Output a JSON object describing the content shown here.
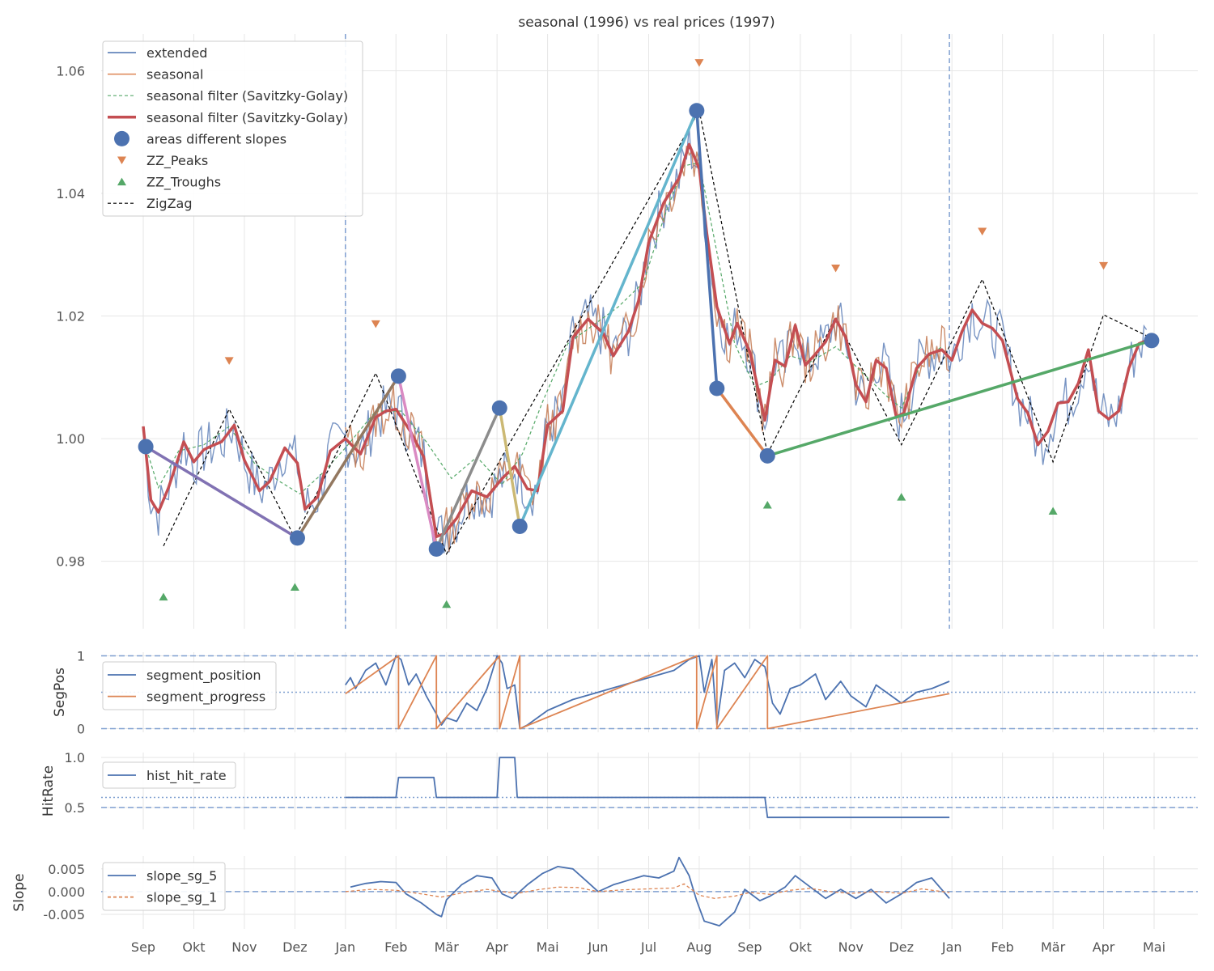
{
  "chart_data": [
    {
      "type": "line",
      "panel": "main",
      "title": "seasonal (1996) vs real prices (1997)",
      "xlabel": "",
      "ylabel": "",
      "x_ticks": [
        "Sep",
        "Okt",
        "Nov",
        "Dez",
        "Jan",
        "Feb",
        "Mär",
        "Apr",
        "Mai",
        "Jun",
        "Jul",
        "Aug",
        "Sep",
        "Okt",
        "Nov",
        "Dez",
        "Jan",
        "Feb",
        "Mär",
        "Apr",
        "Mai"
      ],
      "y_ticks": [
        "1.06",
        "1.04",
        "1.02",
        "1.00",
        "0.98"
      ],
      "ylim": [
        0.969,
        1.066
      ],
      "xlim_months": [
        -0.9,
        20.9
      ],
      "vertical_markers": [
        4.0,
        15.95
      ],
      "legend_location": "upper-left",
      "legend": [
        {
          "label": "extended",
          "color": "#4c72b0",
          "style": "thin-line"
        },
        {
          "label": "seasonal",
          "color": "#dd8452",
          "style": "thin-line"
        },
        {
          "label": "seasonal filter (Savitzky-Golay)",
          "color": "#55a868",
          "style": "dashed-line"
        },
        {
          "label": "seasonal filter (Savitzky-Golay)",
          "color": "#c44e52",
          "style": "thick-line"
        },
        {
          "label": "areas different slopes",
          "color": "#4c72b0",
          "style": "marker-circle"
        },
        {
          "label": "ZZ_Peaks",
          "color": "#dd8452",
          "style": "marker-down"
        },
        {
          "label": "ZZ_Troughs",
          "color": "#55a868",
          "style": "marker-up"
        },
        {
          "label": "ZigZag",
          "color": "#000000",
          "style": "black-dashed"
        }
      ],
      "zigzag": {
        "x": [
          0.4,
          1.7,
          3.0,
          4.6,
          6.0,
          11.0,
          12.35,
          13.7,
          15.0,
          16.6,
          18.0,
          19.0,
          20.0
        ],
        "y": [
          0.9825,
          1.0048,
          0.9838,
          1.0107,
          0.9812,
          1.0535,
          0.9975,
          1.0198,
          0.999,
          1.026,
          0.9962,
          1.0202,
          1.0162
        ]
      },
      "smooth_filter": {
        "x": [
          0.0,
          0.15,
          0.3,
          0.5,
          0.8,
          1.0,
          1.2,
          1.35,
          1.55,
          1.8,
          2.0,
          2.3,
          2.5,
          2.8,
          3.05,
          3.2,
          3.45,
          3.7,
          4.0,
          4.3,
          4.6,
          4.8,
          5.0,
          5.3,
          5.55,
          5.8,
          5.95,
          6.2,
          6.5,
          6.8,
          7.1,
          7.35,
          7.6,
          7.8,
          8.0,
          8.3,
          8.5,
          8.8,
          9.1,
          9.3,
          9.6,
          9.8,
          10.0,
          10.3,
          10.6,
          10.8,
          11.0,
          11.15,
          11.35,
          11.6,
          11.75,
          12.0,
          12.3,
          12.5,
          12.7,
          12.9,
          13.1,
          13.3,
          13.5,
          13.7,
          13.9,
          14.1,
          14.3,
          14.5,
          14.7,
          14.9,
          15.05,
          15.3,
          15.55,
          15.8,
          16.0,
          16.2,
          16.4,
          16.6,
          16.8,
          17.0,
          17.3,
          17.5,
          17.7,
          17.9,
          18.1,
          18.3,
          18.5,
          18.7,
          18.9,
          19.1,
          19.3,
          19.5,
          19.7,
          19.9
        ],
        "y": [
          1.002,
          0.99,
          0.988,
          0.992,
          0.9995,
          0.9962,
          0.9982,
          0.9988,
          0.9995,
          1.0022,
          0.9965,
          0.9915,
          0.993,
          0.9985,
          0.996,
          0.9885,
          0.9905,
          0.998,
          1.0,
          0.9975,
          1.0035,
          1.0045,
          1.0048,
          1.001,
          0.997,
          0.984,
          0.9845,
          0.987,
          0.9915,
          0.9905,
          0.9935,
          0.9955,
          0.9918,
          0.9915,
          1.0022,
          1.0045,
          1.0165,
          1.0195,
          1.0172,
          1.0135,
          1.0175,
          1.0225,
          1.032,
          1.0385,
          1.0425,
          1.048,
          1.044,
          1.0335,
          1.0215,
          1.0155,
          1.0188,
          1.0142,
          1.003,
          1.0128,
          1.0118,
          1.0185,
          1.012,
          1.0138,
          1.0158,
          1.0195,
          1.0165,
          1.0088,
          1.006,
          1.0128,
          1.0115,
          1.0035,
          1.0042,
          1.0115,
          1.0138,
          1.0145,
          1.0128,
          1.0175,
          1.021,
          1.0188,
          1.018,
          1.016,
          1.0065,
          1.0042,
          0.999,
          1.0012,
          1.0058,
          1.006,
          1.009,
          1.0145,
          1.0045,
          1.0032,
          1.0045,
          1.0115,
          1.0155,
          1.0162
        ]
      },
      "seasonal_filter": {
        "x": [
          0.0,
          0.3,
          0.7,
          1.2,
          1.7,
          2.2,
          2.7,
          3.1,
          3.5,
          4.0,
          4.6,
          5.1,
          5.6,
          6.1,
          6.6,
          7.1,
          7.5,
          7.9,
          8.4,
          8.9,
          9.4,
          9.9,
          10.3,
          10.7,
          11.0,
          11.3,
          11.7,
          12.1,
          12.4,
          12.8,
          13.2,
          13.7,
          14.2,
          14.7,
          15.0,
          15.4,
          15.8
        ],
        "y": [
          1.0,
          0.992,
          0.998,
          0.999,
          1.002,
          0.996,
          0.993,
          0.991,
          0.994,
          0.9985,
          1.0045,
          1.0045,
          0.9995,
          0.9935,
          0.997,
          0.9925,
          0.9975,
          1.006,
          1.0155,
          1.0185,
          1.0215,
          1.0255,
          1.036,
          1.0445,
          1.045,
          1.0325,
          1.0155,
          1.0085,
          1.0095,
          1.0135,
          1.0125,
          1.015,
          1.011,
          1.007,
          1.005,
          1.0125,
          1.015
        ]
      },
      "slope_areas": {
        "points": [
          {
            "x": 0.05,
            "y": 0.9987
          },
          {
            "x": 3.05,
            "y": 0.9838
          },
          {
            "x": 5.05,
            "y": 1.0102
          },
          {
            "x": 5.8,
            "y": 0.982
          },
          {
            "x": 7.05,
            "y": 1.005
          },
          {
            "x": 7.45,
            "y": 0.9857
          },
          {
            "x": 10.95,
            "y": 1.0535
          },
          {
            "x": 11.35,
            "y": 1.0082
          },
          {
            "x": 12.35,
            "y": 0.9972
          },
          {
            "x": 19.95,
            "y": 1.016
          }
        ],
        "segments": [
          {
            "from": [
              0.05,
              0.9987
            ],
            "to": [
              3.05,
              0.9838
            ],
            "color": "#8172b3"
          },
          {
            "from": [
              3.05,
              0.9838
            ],
            "to": [
              5.05,
              1.0102
            ],
            "color": "#937860"
          },
          {
            "from": [
              5.05,
              1.0102
            ],
            "to": [
              5.8,
              0.982
            ],
            "color": "#da8bc3"
          },
          {
            "from": [
              5.8,
              0.982
            ],
            "to": [
              7.05,
              1.005
            ],
            "color": "#8c8c8c"
          },
          {
            "from": [
              7.05,
              1.005
            ],
            "to": [
              7.45,
              0.9857
            ],
            "color": "#ccb974"
          },
          {
            "from": [
              7.45,
              0.9857
            ],
            "to": [
              10.95,
              1.0535
            ],
            "color": "#64b5cd"
          },
          {
            "from": [
              10.95,
              1.0535
            ],
            "to": [
              11.35,
              1.0082
            ],
            "color": "#4c72b0"
          },
          {
            "from": [
              11.35,
              1.0082
            ],
            "to": [
              12.35,
              0.9972
            ],
            "color": "#dd8452"
          },
          {
            "from": [
              12.35,
              0.9972
            ],
            "to": [
              19.95,
              1.016
            ],
            "color": "#55a868"
          }
        ]
      },
      "zz_peaks": {
        "x": [
          1.7,
          4.6,
          11.0,
          13.7,
          16.6,
          19.0
        ],
        "y": [
          1.0127,
          1.0187,
          1.0613,
          1.0278,
          1.0338,
          1.0282
        ]
      },
      "zz_troughs": {
        "x": [
          0.4,
          3.0,
          6.0,
          12.35,
          15.0,
          18.0
        ],
        "y": [
          0.9742,
          0.9758,
          0.973,
          0.9892,
          0.9905,
          0.9882
        ]
      }
    },
    {
      "type": "line",
      "panel": "segment",
      "ylabel": "SegPos",
      "y_ticks": [
        "1",
        "0"
      ],
      "ylim": [
        -0.05,
        1.05
      ],
      "hlines": [
        {
          "y": 1,
          "style": "dashed"
        },
        {
          "y": 0.5,
          "style": "dotted"
        },
        {
          "y": 0,
          "style": "dashed"
        }
      ],
      "legend_location": "upper-left",
      "series": [
        {
          "name": "segment_position",
          "color": "#4c72b0",
          "x": [
            4.0,
            4.1,
            4.2,
            4.4,
            4.6,
            4.8,
            5.0,
            5.1,
            5.25,
            5.4,
            5.6,
            5.8,
            5.9,
            6.0,
            6.2,
            6.4,
            6.6,
            6.8,
            7.0,
            7.1,
            7.2,
            7.35,
            7.45,
            7.6,
            7.8,
            8.0,
            8.5,
            9.0,
            9.5,
            10.0,
            10.5,
            10.8,
            11.0,
            11.1,
            11.25,
            11.35,
            11.5,
            11.7,
            11.9,
            12.1,
            12.3,
            12.45,
            12.6,
            12.8,
            13.0,
            13.3,
            13.5,
            13.8,
            14.0,
            14.3,
            14.5,
            14.8,
            15.0,
            15.3,
            15.6,
            15.95
          ],
          "y": [
            0.6,
            0.7,
            0.55,
            0.8,
            0.9,
            0.6,
            1.0,
            0.95,
            0.6,
            0.75,
            0.45,
            0.2,
            0.05,
            0.15,
            0.1,
            0.35,
            0.25,
            0.55,
            1.0,
            0.9,
            0.55,
            0.6,
            0.0,
            0.05,
            0.15,
            0.25,
            0.4,
            0.5,
            0.6,
            0.7,
            0.8,
            0.95,
            1.0,
            0.5,
            0.95,
            0.05,
            0.8,
            0.9,
            0.7,
            0.95,
            0.85,
            0.35,
            0.2,
            0.55,
            0.6,
            0.75,
            0.4,
            0.65,
            0.45,
            0.3,
            0.6,
            0.45,
            0.35,
            0.5,
            0.55,
            0.65
          ]
        },
        {
          "name": "segment_progress",
          "color": "#dd8452",
          "x": [
            4.0,
            5.05,
            5.05,
            5.8,
            5.8,
            7.05,
            7.05,
            7.45,
            7.45,
            10.95,
            10.95,
            11.35,
            11.35,
            12.35,
            12.35,
            15.95
          ],
          "y": [
            0.48,
            1.0,
            0.0,
            1.0,
            0.0,
            1.0,
            0.0,
            1.0,
            0.0,
            1.0,
            0.0,
            1.0,
            0.0,
            1.0,
            0.0,
            0.48
          ]
        }
      ]
    },
    {
      "type": "line",
      "panel": "hitrate",
      "ylabel": "HitRate",
      "y_ticks": [
        "1.0",
        "0.5"
      ],
      "ylim": [
        0.28,
        1.05
      ],
      "hlines": [
        {
          "y": 0.6,
          "style": "dotted"
        },
        {
          "y": 0.5,
          "style": "dashed"
        }
      ],
      "legend_location": "upper-left",
      "series": [
        {
          "name": "hist_hit_rate",
          "color": "#4c72b0",
          "x": [
            4.0,
            5.0,
            5.05,
            5.75,
            5.8,
            7.0,
            7.05,
            7.35,
            7.4,
            12.3,
            12.35,
            15.95
          ],
          "y": [
            0.6,
            0.6,
            0.8,
            0.8,
            0.6,
            0.6,
            1.0,
            1.0,
            0.6,
            0.6,
            0.4,
            0.4
          ]
        }
      ]
    },
    {
      "type": "line",
      "panel": "slope",
      "ylabel": "Slope",
      "y_ticks": [
        "0.005",
        "0.000",
        "-0.005"
      ],
      "ylim": [
        -0.0082,
        0.0078
      ],
      "hlines": [
        {
          "y": 0,
          "style": "dashed"
        }
      ],
      "legend_location": "upper-left",
      "series": [
        {
          "name": "slope_sg_5",
          "color": "#4c72b0",
          "style": "solid",
          "x": [
            4.1,
            4.4,
            4.7,
            5.0,
            5.2,
            5.5,
            5.8,
            5.9,
            6.0,
            6.3,
            6.6,
            6.9,
            7.1,
            7.3,
            7.6,
            7.9,
            8.2,
            8.5,
            8.8,
            9.0,
            9.3,
            9.6,
            9.9,
            10.2,
            10.5,
            10.6,
            10.8,
            10.95,
            11.1,
            11.4,
            11.7,
            11.9,
            12.2,
            12.4,
            12.7,
            12.9,
            13.2,
            13.5,
            13.8,
            14.1,
            14.4,
            14.7,
            15.0,
            15.3,
            15.6,
            15.95
          ],
          "y": [
            0.001,
            0.0018,
            0.0022,
            0.002,
            -0.0005,
            -0.0025,
            -0.005,
            -0.0055,
            -0.0018,
            0.0015,
            0.0035,
            0.003,
            -0.0005,
            -0.0015,
            0.0015,
            0.004,
            0.0055,
            0.005,
            0.002,
            0.0,
            0.0015,
            0.0025,
            0.0035,
            0.003,
            0.0045,
            0.0075,
            0.0035,
            -0.002,
            -0.0065,
            -0.0075,
            -0.0045,
            0.0005,
            -0.002,
            -0.001,
            0.001,
            0.0035,
            0.001,
            -0.0015,
            0.0005,
            -0.0015,
            0.0005,
            -0.0025,
            -0.0005,
            0.002,
            0.003,
            -0.0015
          ]
        },
        {
          "name": "slope_sg_1",
          "color": "#dd8452",
          "style": "dashed",
          "x": [
            4.0,
            4.5,
            5.0,
            5.5,
            5.9,
            6.3,
            6.8,
            7.1,
            7.4,
            7.8,
            8.2,
            8.6,
            9.0,
            9.5,
            10.0,
            10.5,
            10.7,
            11.0,
            11.3,
            11.7,
            12.0,
            12.4,
            12.8,
            13.2,
            13.6,
            14.0,
            14.5,
            15.0,
            15.4,
            15.95
          ],
          "y": [
            0.0,
            0.0005,
            0.0003,
            -0.0005,
            -0.0012,
            -0.0003,
            0.0005,
            0.0,
            -0.0004,
            0.0004,
            0.001,
            0.0009,
            0.0,
            0.0004,
            0.0006,
            0.0008,
            0.0017,
            -0.0008,
            -0.0015,
            -0.001,
            -0.0002,
            -0.0006,
            0.0003,
            0.0007,
            0.0,
            -0.0004,
            0.0,
            -0.0004,
            0.0006,
            -0.0002
          ]
        }
      ]
    }
  ]
}
